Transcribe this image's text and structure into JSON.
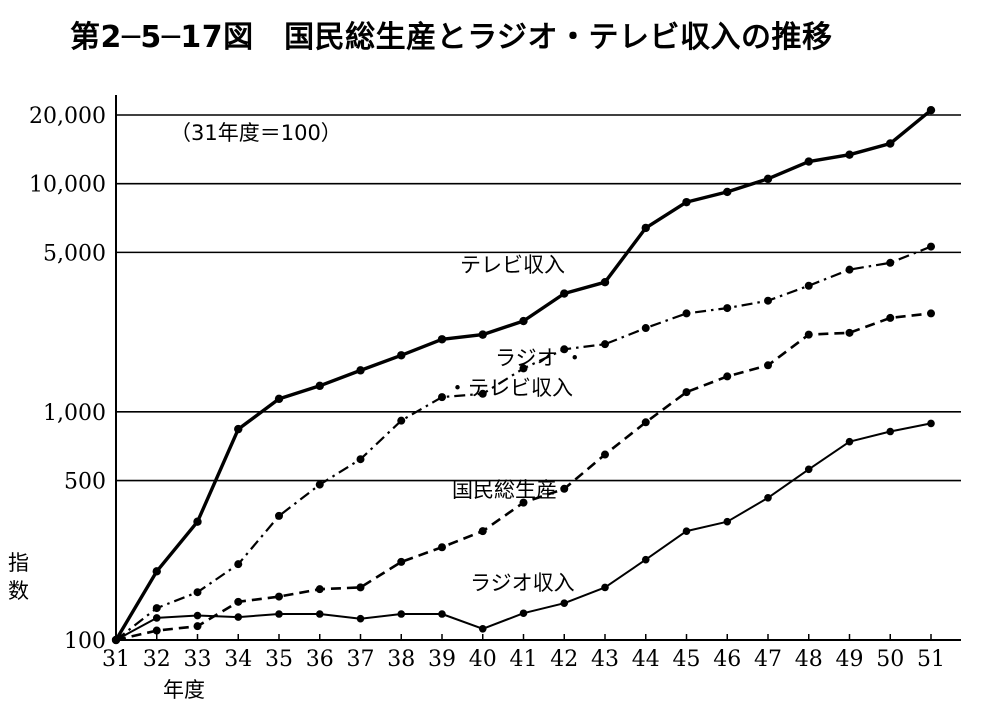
{
  "title": "第2─5─17図　国民総生産とラジオ・テレビ収入の推移",
  "chart_data": {
    "type": "line",
    "title": "第2─5─17図　国民総生産とラジオ・テレビ収入の推移",
    "note": "（31年度＝100）",
    "ylabel": "指数",
    "xlabel": "年度",
    "yscale": "log",
    "ylim": [
      100,
      20000
    ],
    "yticks": [
      {
        "value": 100,
        "label": "100"
      },
      {
        "value": 500,
        "label": "500"
      },
      {
        "value": 1000,
        "label": "1,000"
      },
      {
        "value": 5000,
        "label": "5,000"
      },
      {
        "value": 10000,
        "label": "10,000"
      },
      {
        "value": 20000,
        "label": "20,000"
      }
    ],
    "x": [
      "31",
      "32",
      "33",
      "34",
      "35",
      "36",
      "37",
      "38",
      "39",
      "40",
      "41",
      "42",
      "43",
      "44",
      "45",
      "46",
      "47",
      "48",
      "49",
      "50",
      "51"
    ],
    "grid": "horizontal",
    "series": [
      {
        "name": "テレビ収入",
        "style": "solid",
        "values": [
          100,
          200,
          330,
          840,
          1140,
          1300,
          1520,
          1770,
          2080,
          2180,
          2500,
          3300,
          3700,
          6400,
          8300,
          9200,
          10500,
          12500,
          13400,
          15000,
          21000
        ]
      },
      {
        "name": "ラジオ・テレビ収入",
        "style": "dashdot",
        "values": [
          100,
          138,
          162,
          215,
          350,
          480,
          620,
          915,
          1160,
          1200,
          1550,
          1880,
          1980,
          2330,
          2700,
          2850,
          3070,
          3570,
          4200,
          4500,
          5300
        ]
      },
      {
        "name": "国民総生産",
        "style": "dashed",
        "values": [
          100,
          110,
          115,
          147,
          155,
          167,
          170,
          220,
          255,
          300,
          400,
          460,
          650,
          900,
          1220,
          1430,
          1600,
          2180,
          2220,
          2580,
          2700
        ]
      },
      {
        "name": "ラジオ収入",
        "style": "solid-thin",
        "values": [
          100,
          125,
          128,
          126,
          130,
          130,
          124,
          130,
          130,
          112,
          131,
          145,
          170,
          225,
          300,
          330,
          420,
          560,
          740,
          820,
          890
        ]
      }
    ]
  }
}
